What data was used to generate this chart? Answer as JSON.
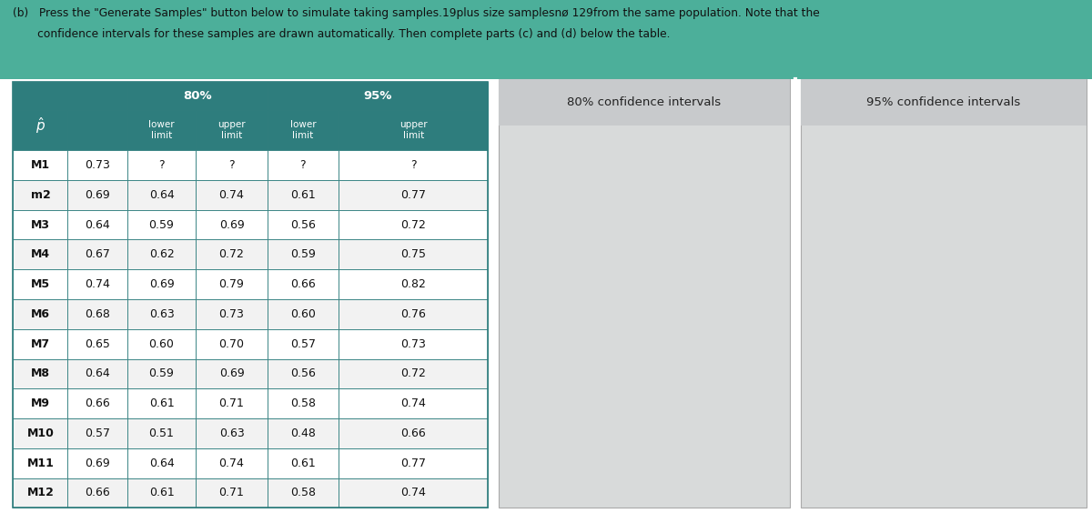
{
  "title_text_line1": "(b)   Press the \"Generate Samples\" button below to simulate taking samples.19plus size samplesnø 129from the same population. Note that the",
  "title_text_line2": "       confidence intervals for these samples are drawn automatically. Then complete parts (c) and (d) below the table.",
  "header_bg": "#2e7d7d",
  "header_text_color": "#ffffff",
  "table_border_color": "#2e7d7d",
  "ci_panel_bg": "#d8dada",
  "ci_panel_title_bg": "#c8cacc",
  "ci_color": "#2d7d7d",
  "vline_color": "#cc3333",
  "overall_bg": "#4caf9a",
  "body_bg": "#ffffff",
  "rows": [
    {
      "label": "M1",
      "p": "0.73",
      "l80": "?",
      "u80": "?",
      "l95": "?",
      "u95": "?"
    },
    {
      "label": "m2",
      "p": "0.69",
      "l80": "0.64",
      "u80": "0.74",
      "l95": "0.61",
      "u95": "0.77"
    },
    {
      "label": "M3",
      "p": "0.64",
      "l80": "0.59",
      "u80": "0.69",
      "l95": "0.56",
      "u95": "0.72"
    },
    {
      "label": "M4",
      "p": "0.67",
      "l80": "0.62",
      "u80": "0.72",
      "l95": "0.59",
      "u95": "0.75"
    },
    {
      "label": "M5",
      "p": "0.74",
      "l80": "0.69",
      "u80": "0.79",
      "l95": "0.66",
      "u95": "0.82"
    },
    {
      "label": "M6",
      "p": "0.68",
      "l80": "0.63",
      "u80": "0.73",
      "l95": "0.60",
      "u95": "0.76"
    },
    {
      "label": "M7",
      "p": "0.65",
      "l80": "0.60",
      "u80": "0.70",
      "l95": "0.57",
      "u95": "0.73"
    },
    {
      "label": "M8",
      "p": "0.64",
      "l80": "0.59",
      "u80": "0.69",
      "l95": "0.56",
      "u95": "0.72"
    },
    {
      "label": "M9",
      "p": "0.66",
      "l80": "0.61",
      "u80": "0.71",
      "l95": "0.58",
      "u95": "0.74"
    },
    {
      "label": "M10",
      "p": "0.57",
      "l80": "0.51",
      "u80": "0.63",
      "l95": "0.48",
      "u95": "0.66"
    },
    {
      "label": "M11",
      "p": "0.69",
      "l80": "0.64",
      "u80": "0.74",
      "l95": "0.61",
      "u95": "0.77"
    },
    {
      "label": "M12",
      "p": "0.66",
      "l80": "0.61",
      "u80": "0.71",
      "l95": "0.58",
      "u95": "0.74"
    }
  ],
  "plot_title_80": "80% confidence intervals",
  "plot_title_95": "95% confidence intervals",
  "vline_x": 0.69,
  "xlim80": [
    0.44,
    0.86
  ],
  "xlim95": [
    0.4,
    0.9
  ]
}
